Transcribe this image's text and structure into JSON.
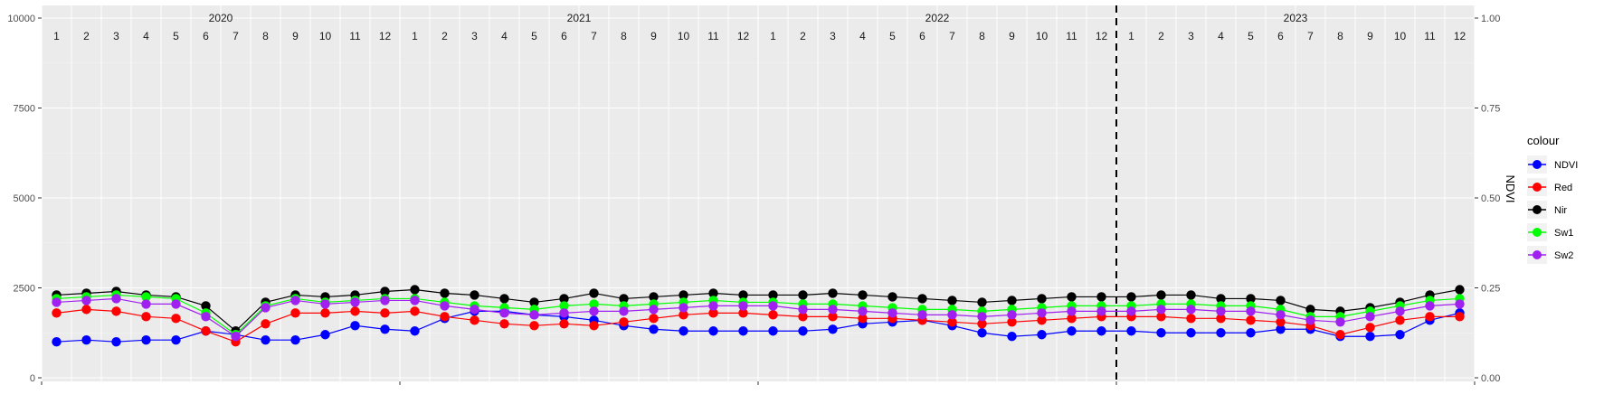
{
  "chart_data": {
    "type": "line",
    "title": "",
    "xlabel": "",
    "ylabel": "",
    "y2label": "NDVI",
    "ylim": [
      0,
      10000
    ],
    "y_ticks": [
      0,
      2500,
      5000,
      7500,
      10000
    ],
    "y_tick_labels": [
      "0",
      "2500",
      "5000",
      "7500",
      "10000"
    ],
    "y2lim": [
      0,
      1
    ],
    "y2_ticks": [
      0,
      0.25,
      0.5,
      0.75,
      1
    ],
    "y2_tick_labels": [
      "0.00",
      "0.25",
      "0.50",
      "0.75",
      "1.00"
    ],
    "grid": true,
    "facet_years": [
      "2020",
      "2021",
      "2022",
      "2023"
    ],
    "month_labels": [
      "1",
      "2",
      "3",
      "4",
      "5",
      "6",
      "7",
      "8",
      "9",
      "10",
      "11",
      "12"
    ],
    "vline_after_year": "2022",
    "legend": {
      "title": "colour",
      "position": "right"
    },
    "x": [
      "2020-01",
      "2020-02",
      "2020-03",
      "2020-04",
      "2020-05",
      "2020-06",
      "2020-07",
      "2020-08",
      "2020-09",
      "2020-10",
      "2020-11",
      "2020-12",
      "2021-01",
      "2021-02",
      "2021-03",
      "2021-04",
      "2021-05",
      "2021-06",
      "2021-07",
      "2021-08",
      "2021-09",
      "2021-10",
      "2021-11",
      "2021-12",
      "2022-01",
      "2022-02",
      "2022-03",
      "2022-04",
      "2022-05",
      "2022-06",
      "2022-07",
      "2022-08",
      "2022-09",
      "2022-10",
      "2022-11",
      "2022-12",
      "2023-01",
      "2023-02",
      "2023-03",
      "2023-04",
      "2023-05",
      "2023-06",
      "2023-07",
      "2023-08",
      "2023-09",
      "2023-10",
      "2023-11",
      "2023-12"
    ],
    "series": [
      {
        "name": "NDVI",
        "color": "#0000ff",
        "axis": "right",
        "values": [
          0.1,
          0.105,
          0.1,
          0.105,
          0.105,
          0.13,
          0.12,
          0.105,
          0.105,
          0.12,
          0.145,
          0.135,
          0.13,
          0.165,
          0.185,
          0.185,
          0.175,
          0.17,
          0.16,
          0.145,
          0.135,
          0.13,
          0.13,
          0.13,
          0.13,
          0.13,
          0.135,
          0.15,
          0.155,
          0.16,
          0.145,
          0.125,
          0.115,
          0.12,
          0.13,
          0.13,
          0.13,
          0.125,
          0.125,
          0.125,
          0.125,
          0.135,
          0.135,
          0.115,
          0.115,
          0.12,
          0.16,
          0.18
        ]
      },
      {
        "name": "Red",
        "color": "#ff0000",
        "axis": "left",
        "values": [
          1800,
          1900,
          1850,
          1700,
          1650,
          1300,
          1000,
          1500,
          1800,
          1800,
          1850,
          1800,
          1850,
          1700,
          1600,
          1500,
          1450,
          1500,
          1450,
          1550,
          1650,
          1750,
          1800,
          1800,
          1750,
          1700,
          1700,
          1650,
          1650,
          1600,
          1550,
          1500,
          1550,
          1600,
          1650,
          1700,
          1700,
          1700,
          1650,
          1650,
          1600,
          1550,
          1450,
          1200,
          1400,
          1600,
          1700,
          1700
        ]
      },
      {
        "name": "Nir",
        "color": "#000000",
        "axis": "left",
        "values": [
          2300,
          2350,
          2400,
          2300,
          2250,
          2000,
          1300,
          2100,
          2300,
          2250,
          2300,
          2400,
          2450,
          2350,
          2300,
          2200,
          2100,
          2200,
          2350,
          2200,
          2250,
          2300,
          2350,
          2300,
          2300,
          2300,
          2350,
          2300,
          2250,
          2200,
          2150,
          2100,
          2150,
          2200,
          2250,
          2250,
          2250,
          2300,
          2300,
          2200,
          2200,
          2150,
          1900,
          1850,
          1950,
          2100,
          2300,
          2450
        ]
      },
      {
        "name": "Sw1",
        "color": "#00ff00",
        "axis": "left",
        "values": [
          2200,
          2250,
          2300,
          2250,
          2200,
          1800,
          1200,
          2000,
          2200,
          2100,
          2150,
          2200,
          2200,
          2100,
          2000,
          1950,
          1900,
          2000,
          2050,
          2000,
          2050,
          2100,
          2150,
          2100,
          2100,
          2050,
          2050,
          2000,
          1950,
          1900,
          1900,
          1850,
          1900,
          1950,
          2000,
          2000,
          2000,
          2050,
          2050,
          2000,
          2000,
          1900,
          1700,
          1700,
          1850,
          2000,
          2150,
          2200
        ]
      },
      {
        "name": "Sw2",
        "color": "#a020f0",
        "axis": "left",
        "values": [
          2100,
          2150,
          2200,
          2050,
          2050,
          1700,
          1150,
          1950,
          2150,
          2050,
          2100,
          2150,
          2150,
          2000,
          1900,
          1800,
          1750,
          1800,
          1850,
          1850,
          1900,
          1950,
          2000,
          2000,
          2000,
          1900,
          1900,
          1850,
          1800,
          1750,
          1750,
          1700,
          1750,
          1800,
          1850,
          1850,
          1850,
          1900,
          1900,
          1850,
          1850,
          1750,
          1600,
          1550,
          1700,
          1850,
          2000,
          2050
        ]
      }
    ]
  }
}
